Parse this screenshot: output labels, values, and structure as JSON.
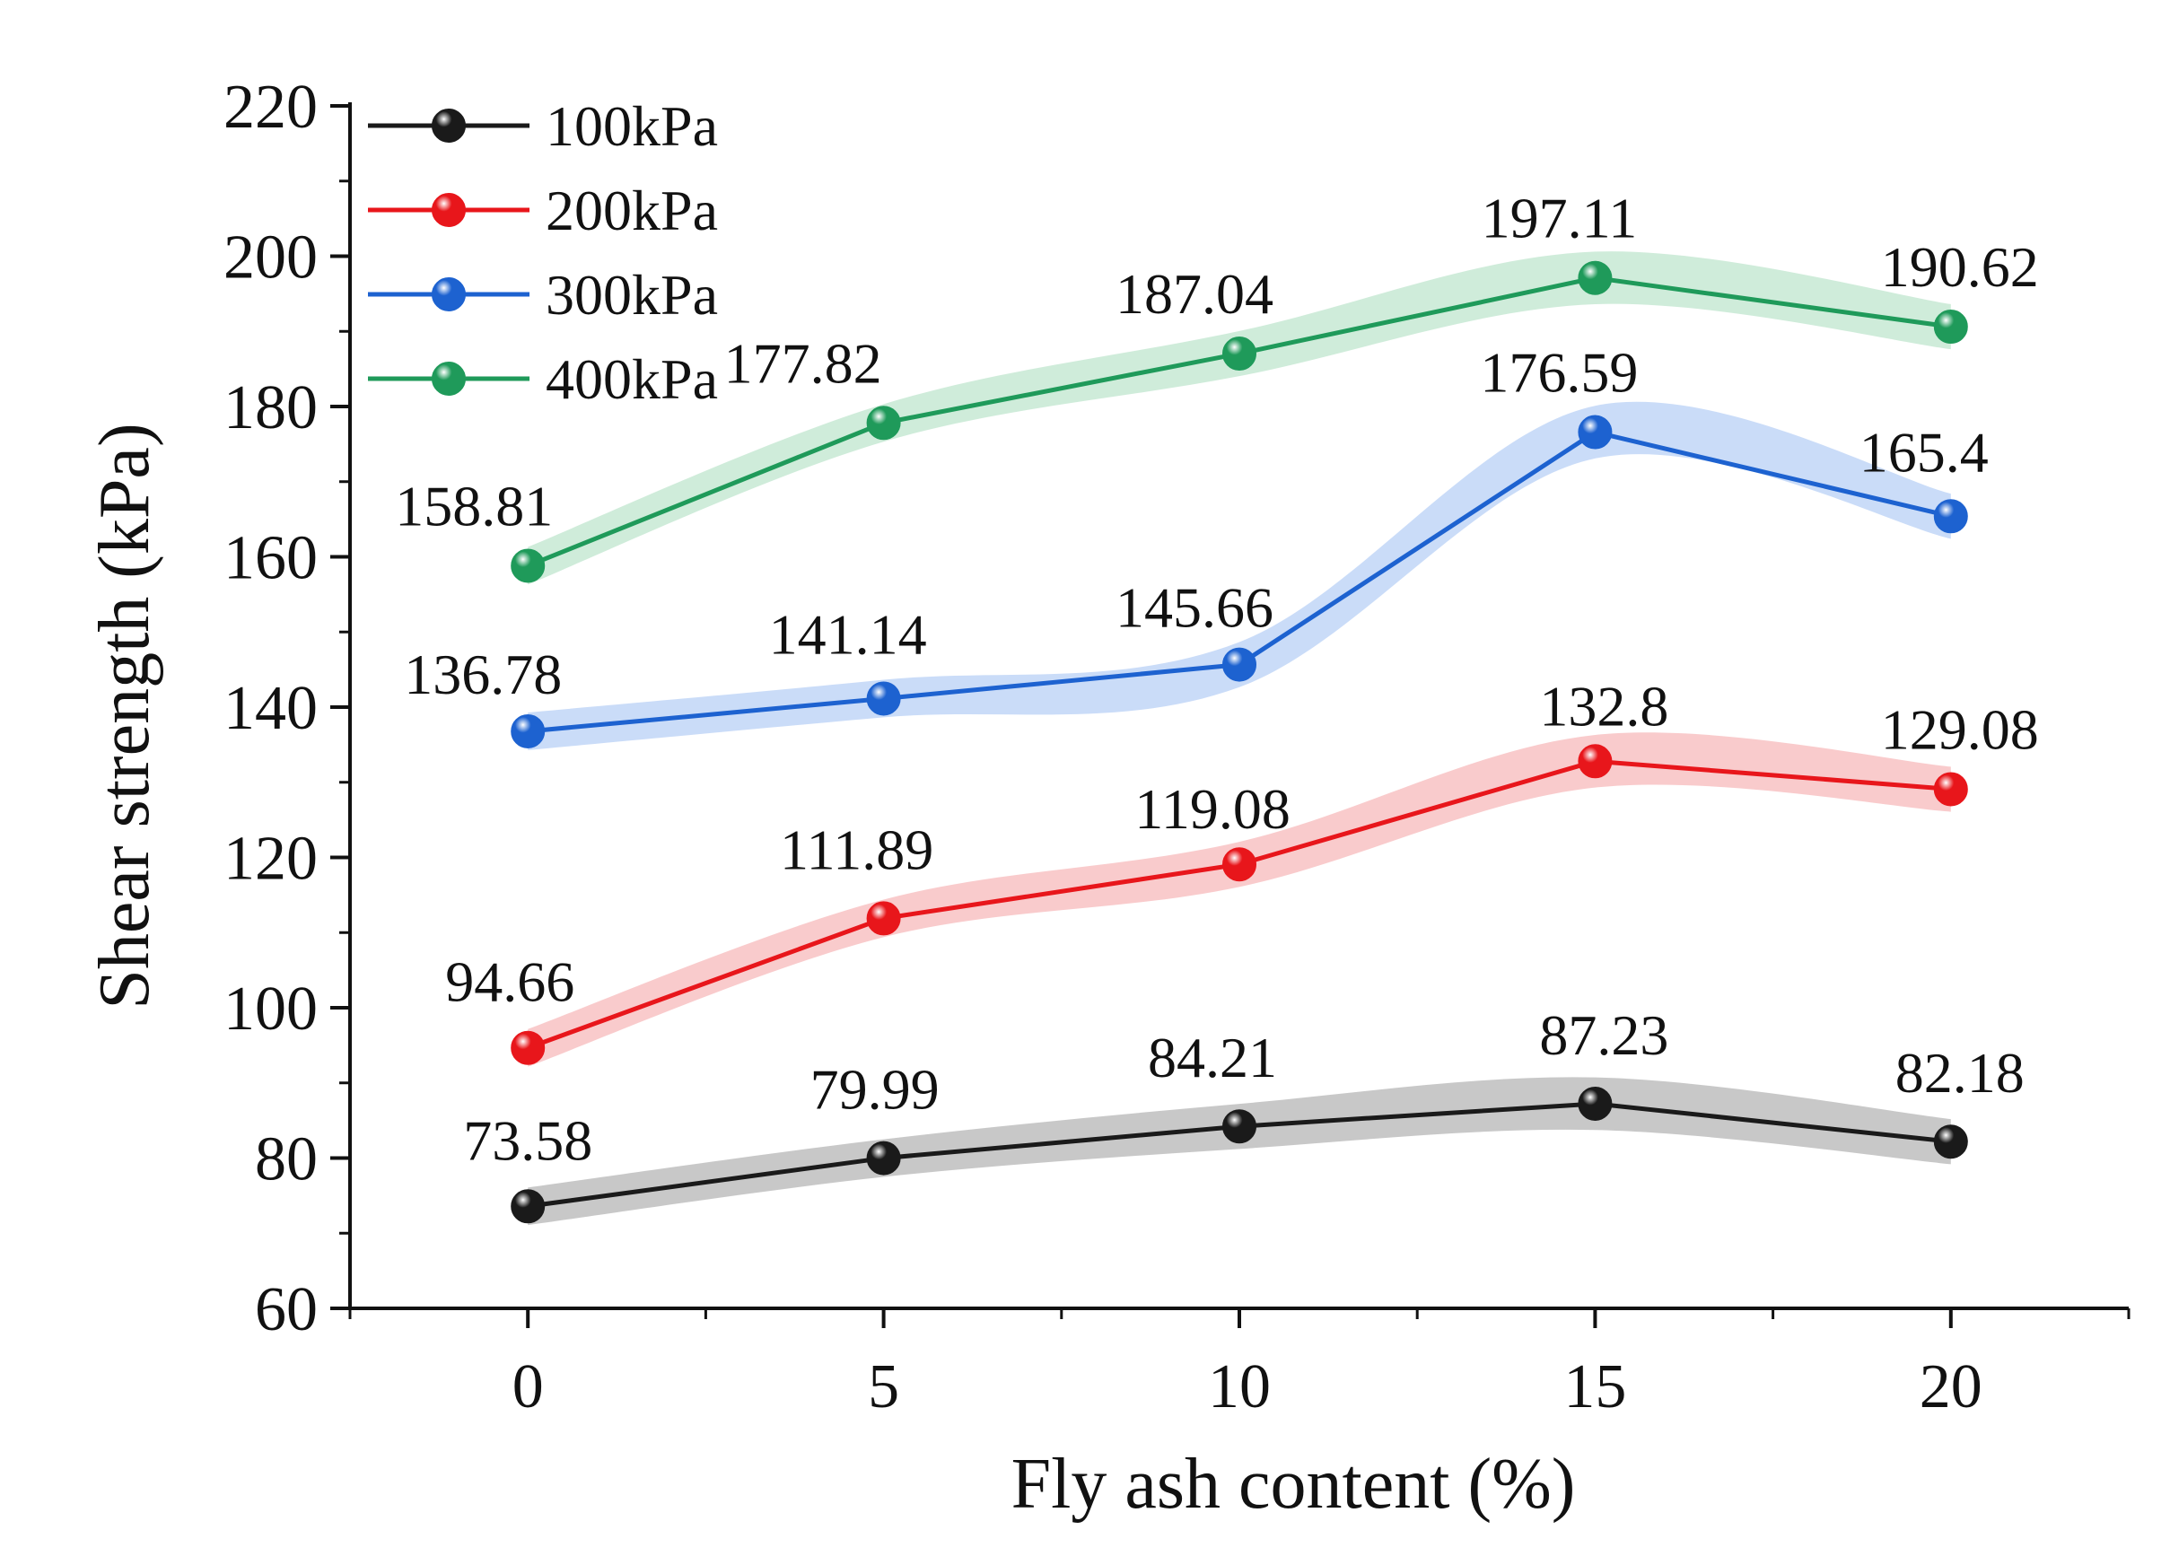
{
  "chart_data": {
    "type": "line",
    "title": "",
    "xlabel": "Fly ash content (%)",
    "ylabel": "Shear strength (kPa)",
    "x": [
      0,
      5,
      10,
      15,
      20
    ],
    "xlim": [
      -2.5,
      22.5
    ],
    "ylim": [
      60,
      220
    ],
    "xticks": [
      0,
      5,
      10,
      15,
      20
    ],
    "yticks": [
      60,
      80,
      100,
      120,
      140,
      160,
      180,
      200,
      220
    ],
    "grid": false,
    "legend_position": "top-left",
    "shaded_band_halfwidth": [
      2.5,
      2.5,
      3,
      3.5,
      3
    ],
    "series": [
      {
        "name": "100kPa",
        "color": "#1a1a1a",
        "band_color": "#9a9a9a",
        "values": [
          73.58,
          79.99,
          84.21,
          87.23,
          82.18
        ],
        "labels": [
          "73.58",
          "79.99",
          "84.21",
          "87.23",
          "82.18"
        ]
      },
      {
        "name": "200kPa",
        "color": "#e8161b",
        "band_color": "#f4a0a2",
        "values": [
          94.66,
          111.89,
          119.08,
          132.8,
          129.08
        ],
        "labels": [
          "94.66",
          "111.89",
          "119.08",
          "132.8",
          "129.08"
        ]
      },
      {
        "name": "300kPa",
        "color": "#1d62d0",
        "band_color": "#9ec0f2",
        "values": [
          136.78,
          141.14,
          145.66,
          176.59,
          165.4
        ],
        "labels": [
          "136.78",
          "141.14",
          "145.66",
          "176.59",
          "165.4"
        ]
      },
      {
        "name": "400kPa",
        "color": "#1f9a5a",
        "band_color": "#a7dcbc",
        "values": [
          158.81,
          177.82,
          187.04,
          197.11,
          190.62
        ],
        "labels": [
          "158.81",
          "177.82",
          "187.04",
          "197.11",
          "190.62"
        ]
      }
    ]
  }
}
